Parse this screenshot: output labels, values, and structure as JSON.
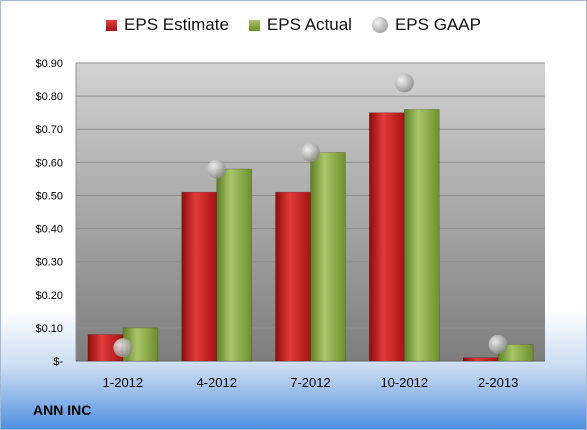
{
  "company_label": "ANN INC",
  "chart_data": {
    "type": "bar",
    "categories": [
      "1-2012",
      "4-2012",
      "7-2012",
      "10-2012",
      "2-2013"
    ],
    "series": [
      {
        "name": "EPS Estimate",
        "kind": "bar",
        "color": "#c0201f",
        "values": [
          0.08,
          0.51,
          0.51,
          0.75,
          0.01
        ]
      },
      {
        "name": "EPS Actual",
        "kind": "bar",
        "color": "#8aab3e",
        "values": [
          0.1,
          0.58,
          0.63,
          0.76,
          0.05
        ]
      },
      {
        "name": "EPS GAAP",
        "kind": "marker",
        "color": "#b0b0b0",
        "values": [
          0.04,
          0.58,
          0.63,
          0.84,
          0.05
        ]
      }
    ],
    "ylim": [
      0,
      0.9
    ],
    "yticks": [
      0,
      0.1,
      0.2,
      0.3,
      0.4,
      0.5,
      0.6,
      0.7,
      0.8,
      0.9
    ],
    "ytick_labels": [
      "$-",
      "$0.10",
      "$0.20",
      "$0.30",
      "$0.40",
      "$0.50",
      "$0.60",
      "$0.70",
      "$0.80",
      "$0.90"
    ],
    "legend_position": "top",
    "grid": true
  }
}
